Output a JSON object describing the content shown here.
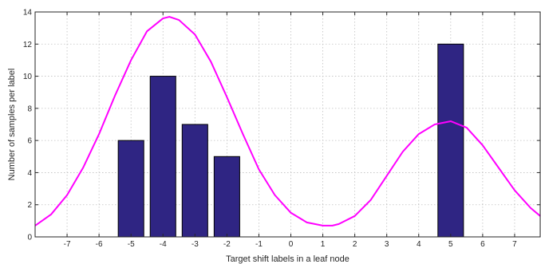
{
  "chart_data": {
    "type": "bar",
    "xlabel": "Target shift labels in a leaf node",
    "ylabel": "Number of samples per label",
    "xlim": [
      -8,
      7.8
    ],
    "ylim": [
      0,
      14
    ],
    "xticks": [
      -7,
      -6,
      -5,
      -4,
      -3,
      -2,
      -1,
      0,
      1,
      2,
      3,
      4,
      5,
      6,
      7
    ],
    "yticks": [
      0,
      2,
      4,
      6,
      8,
      10,
      12,
      14
    ],
    "grid": true,
    "bars": {
      "x": [
        -5,
        -4,
        -3,
        -2,
        5
      ],
      "values": [
        6,
        10,
        7,
        5,
        12
      ],
      "color": "#2f2583"
    },
    "curve": {
      "color": "#ff00ff",
      "x": [
        -8.0,
        -7.5,
        -7.0,
        -6.5,
        -6.0,
        -5.5,
        -5.0,
        -4.5,
        -4.0,
        -3.8,
        -3.5,
        -3.0,
        -2.5,
        -2.0,
        -1.5,
        -1.0,
        -0.5,
        0.0,
        0.5,
        1.0,
        1.3,
        1.5,
        2.0,
        2.5,
        3.0,
        3.5,
        4.0,
        4.5,
        5.0,
        5.5,
        6.0,
        6.5,
        7.0,
        7.5,
        7.8
      ],
      "y": [
        0.7,
        1.4,
        2.6,
        4.3,
        6.4,
        8.8,
        11.0,
        12.8,
        13.6,
        13.7,
        13.5,
        12.6,
        10.9,
        8.7,
        6.4,
        4.2,
        2.6,
        1.5,
        0.9,
        0.7,
        0.7,
        0.8,
        1.3,
        2.3,
        3.8,
        5.3,
        6.4,
        7.0,
        7.2,
        6.8,
        5.7,
        4.3,
        2.9,
        1.8,
        1.3
      ]
    }
  }
}
